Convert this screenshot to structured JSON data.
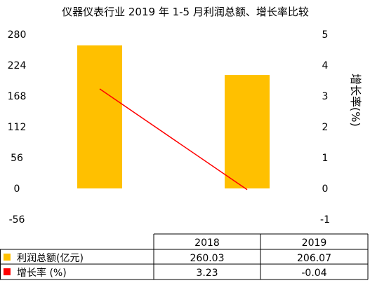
{
  "chart_data": {
    "type": "bar",
    "title": "仪器仪表行业 2019 年 1-5 月利润总额、增长率比较",
    "categories": [
      "2018",
      "2019"
    ],
    "series": [
      {
        "name": "利润总额(亿元)",
        "type": "bar",
        "axis": "left",
        "values": [
          260.03,
          206.07
        ],
        "color": "#FFC000"
      },
      {
        "name": "增长率 (%)",
        "type": "line",
        "axis": "right",
        "values": [
          3.23,
          -0.04
        ],
        "color": "#FF0000"
      }
    ],
    "y_left": {
      "ticks": [
        "280",
        "224",
        "168",
        "112",
        "56",
        "0",
        "-56"
      ],
      "min": -56,
      "max": 280
    },
    "y_right": {
      "label": "增长率(%)",
      "ticks": [
        "5",
        "4",
        "3",
        "2",
        "1",
        "0",
        "-1"
      ],
      "min": -1,
      "max": 5
    },
    "table": {
      "header": [
        "2018",
        "2019"
      ],
      "rows": [
        {
          "label": "利润总额(亿元)",
          "values": [
            "260.03",
            "206.07"
          ]
        },
        {
          "label": "增长率 (%)",
          "values": [
            "3.23",
            "-0.04"
          ]
        }
      ]
    }
  }
}
